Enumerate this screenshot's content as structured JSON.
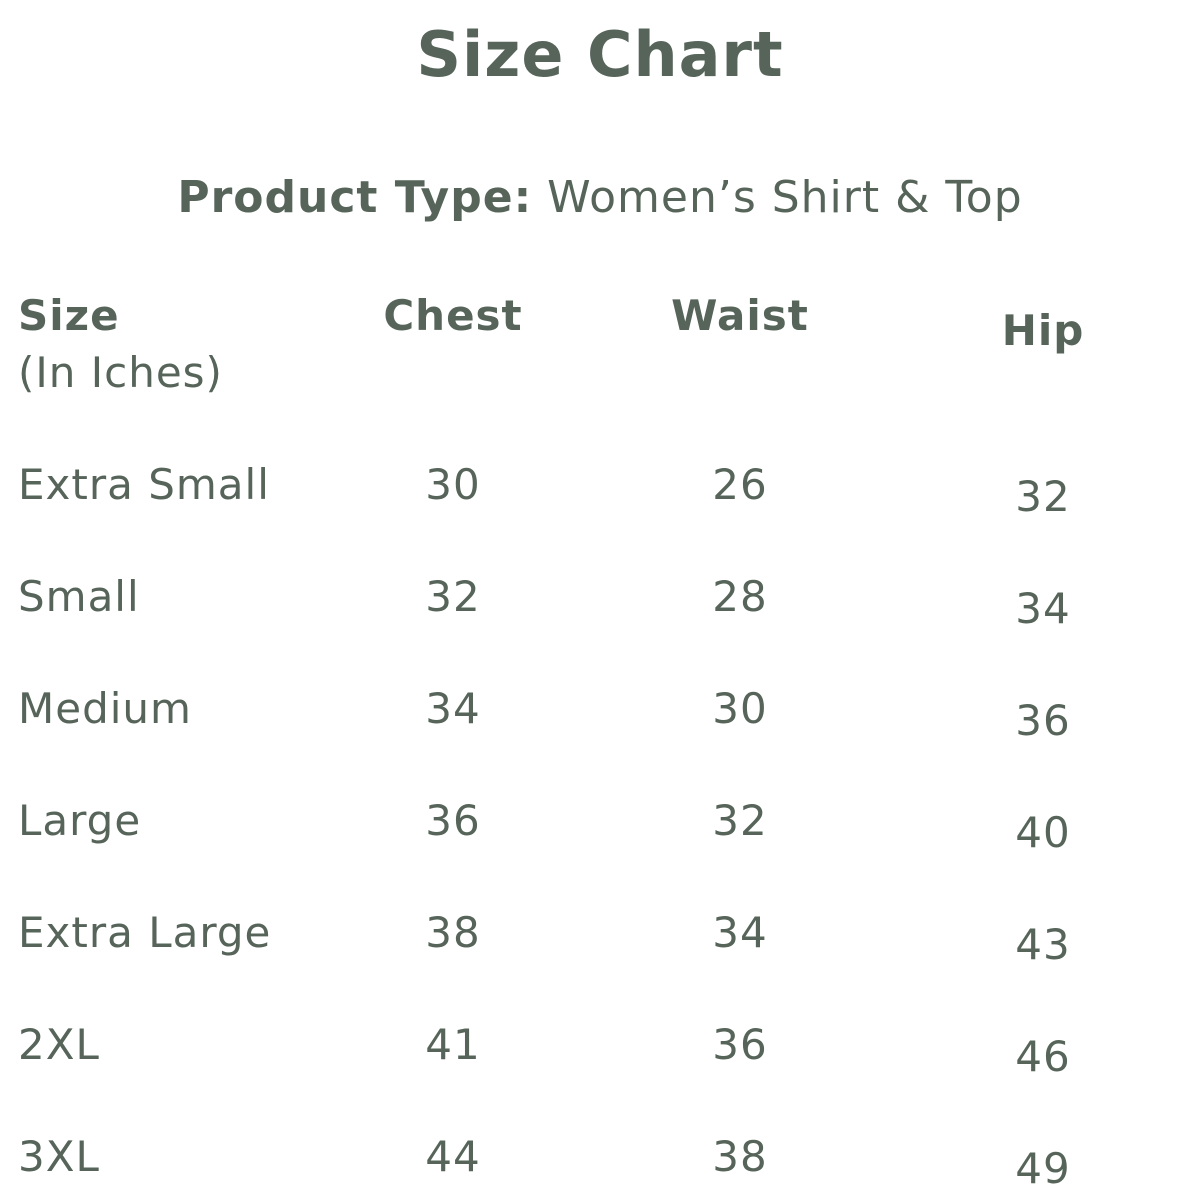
{
  "title": "Size Chart",
  "product_type": {
    "label": "Product Type:",
    "value": "Women’s Shirt & Top"
  },
  "table": {
    "headers": {
      "size": "Size",
      "size_unit": "(In Iches)",
      "chest": "Chest",
      "waist": "Waist",
      "hip": "Hip"
    },
    "rows": [
      {
        "size": "Extra Small",
        "chest": "30",
        "waist": "26",
        "hip": "32"
      },
      {
        "size": "Small",
        "chest": "32",
        "waist": "28",
        "hip": "34"
      },
      {
        "size": "Medium",
        "chest": "34",
        "waist": "30",
        "hip": "36"
      },
      {
        "size": "Large",
        "chest": "36",
        "waist": "32",
        "hip": "40"
      },
      {
        "size": "Extra Large",
        "chest": "38",
        "waist": "34",
        "hip": "43"
      },
      {
        "size": "2XL",
        "chest": "41",
        "waist": "36",
        "hip": "46"
      },
      {
        "size": "3XL",
        "chest": "44",
        "waist": "38",
        "hip": "49"
      }
    ]
  },
  "colors": {
    "text": "#56645a",
    "background": "#ffffff"
  }
}
